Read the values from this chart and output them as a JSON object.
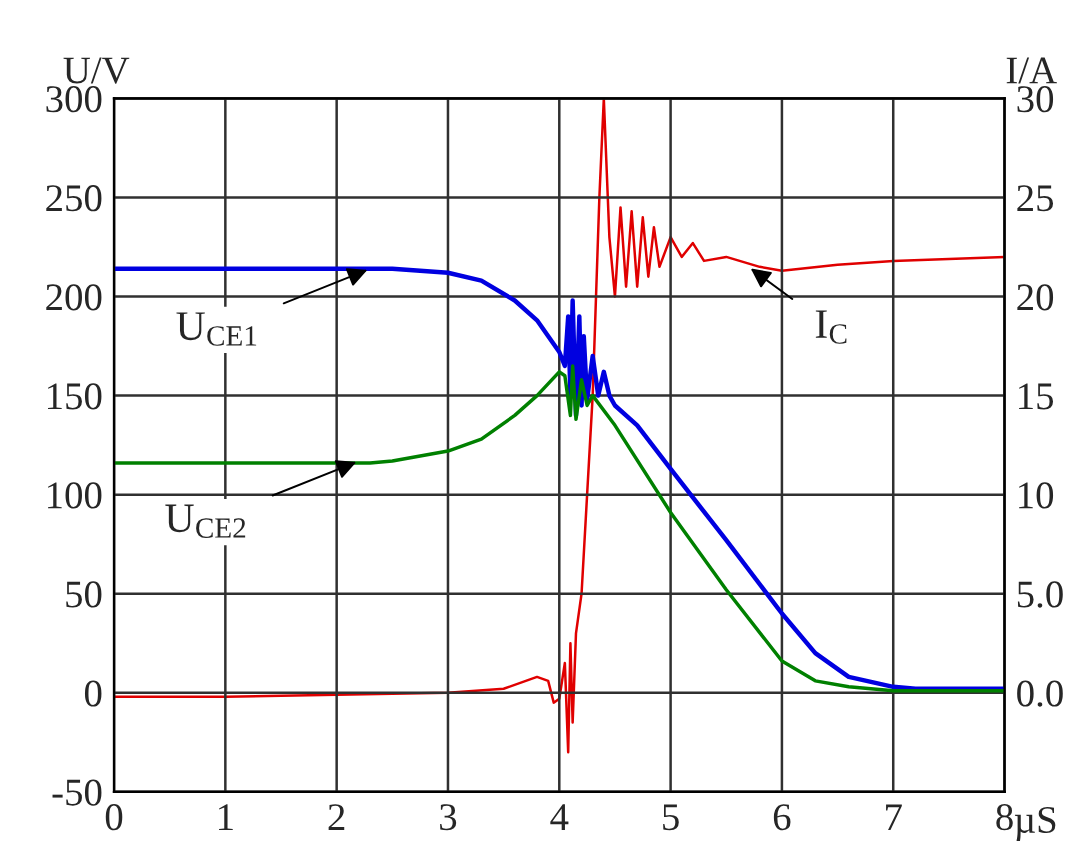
{
  "chart_data": {
    "type": "line",
    "xlabel": "µS",
    "ylabel": "U/V",
    "y2label": "I/A",
    "xlim": [
      0,
      8
    ],
    "xticks": [
      0,
      1,
      2,
      3,
      4,
      5,
      6,
      7,
      8
    ],
    "ylim": [
      -50,
      300
    ],
    "yticks": [
      -50,
      0,
      50,
      100,
      150,
      200,
      250,
      300
    ],
    "y2lim": [
      -5,
      30
    ],
    "y2ticks": [
      {
        "value": 0,
        "label": "0.0"
      },
      {
        "value": 5,
        "label": "5.0"
      },
      10,
      15,
      20,
      25,
      30
    ],
    "grid": true,
    "line_style": "solid",
    "marker": "none",
    "series": [
      {
        "color": "#0000e0",
        "x": [
          0,
          0.5,
          1,
          1.5,
          2,
          2.5,
          3,
          3.3,
          3.6,
          3.8,
          4.0,
          4.05,
          4.08,
          4.1,
          4.12,
          4.15,
          4.18,
          4.2,
          4.22,
          4.25,
          4.3,
          4.35,
          4.4,
          4.45,
          4.5,
          4.7,
          5,
          5.5,
          6,
          6.3,
          6.6,
          7,
          7.2,
          8
        ],
        "values": [
          214,
          214,
          214,
          214,
          214,
          214,
          212,
          208,
          198,
          188,
          172,
          165,
          190,
          150,
          198,
          140,
          190,
          145,
          180,
          148,
          170,
          150,
          162,
          150,
          145,
          135,
          113,
          77,
          40,
          20,
          8,
          3,
          2,
          2
        ]
      },
      {
        "color": "#008000",
        "x": [
          0,
          0.5,
          1,
          1.5,
          2,
          2.3,
          2.5,
          3,
          3.3,
          3.6,
          3.8,
          4.0,
          4.05,
          4.1,
          4.12,
          4.15,
          4.2,
          4.25,
          4.3,
          4.5,
          5,
          5.5,
          6,
          6.3,
          6.6,
          7,
          8
        ],
        "values": [
          116,
          116,
          116,
          116,
          116,
          116,
          117,
          122,
          128,
          140,
          150,
          162,
          160,
          140,
          165,
          138,
          158,
          145,
          150,
          135,
          91,
          52,
          16,
          6,
          3,
          1,
          1
        ]
      },
      {
        "color": "#e00000",
        "axis": "y2",
        "x": [
          0,
          1,
          2,
          3,
          3.5,
          3.8,
          3.9,
          3.95,
          4.0,
          4.05,
          4.08,
          4.1,
          4.12,
          4.15,
          4.2,
          4.25,
          4.3,
          4.33,
          4.36,
          4.4,
          4.45,
          4.5,
          4.55,
          4.6,
          4.65,
          4.7,
          4.75,
          4.8,
          4.85,
          4.9,
          5.0,
          5.1,
          5.2,
          5.3,
          5.5,
          5.8,
          6.0,
          6.5,
          7,
          8
        ],
        "values": [
          -0.2,
          -0.2,
          -0.1,
          0,
          0.2,
          0.8,
          0.6,
          -0.5,
          -0.3,
          1.5,
          -3,
          2.5,
          -1.5,
          3,
          5,
          10,
          15,
          20,
          25,
          30,
          23,
          20,
          24.5,
          20.5,
          24.3,
          20.5,
          24,
          21,
          23.5,
          21.5,
          23,
          22,
          22.7,
          21.8,
          22,
          21.5,
          21.3,
          21.6,
          21.8,
          22
        ]
      }
    ],
    "annotations": [
      {
        "text": "U$_{CE1}$",
        "x": 2.3,
        "y": 214
      },
      {
        "text": "U$_{CE2}$",
        "x": 2.2,
        "y": 117
      },
      {
        "text": "I$_{C}$",
        "x": 5.7,
        "y": 215
      }
    ]
  }
}
